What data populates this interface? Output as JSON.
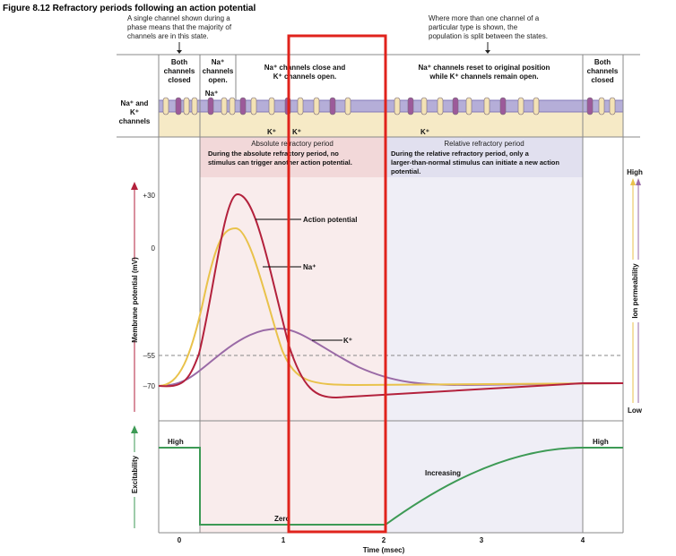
{
  "title": "Figure 8.12 Refractory periods following an action potential",
  "notes": {
    "left": [
      "A single channel shown during a",
      "phase means that the majority of",
      "channels are in this state."
    ],
    "right": [
      "Where more than one channel of a",
      "particular type is shown, the",
      "population is split between the states."
    ]
  },
  "phases": {
    "p1": [
      "Both",
      "channels",
      "closed"
    ],
    "p2": [
      "Na⁺",
      "channels",
      "open."
    ],
    "p3": [
      "Na⁺ channels close and",
      "K⁺ channels open."
    ],
    "p4": [
      "Na⁺ channels reset to original position",
      "while K⁺ channels remain open."
    ],
    "p5": [
      "Both",
      "channels",
      "closed"
    ]
  },
  "channel_label": [
    "Na⁺ and",
    "K⁺",
    "channels"
  ],
  "ion_labels": {
    "na": "Na⁺",
    "k": "K⁺"
  },
  "periods": {
    "absolute_title": "Absolute refractory period",
    "absolute_desc": [
      "During the absolute refractory period, no",
      "stimulus can trigger another action potential."
    ],
    "relative_title": "Relative refractory period",
    "relative_desc": [
      "During the relative refractory period, only a",
      "larger-than-normal stimulus can initiate a new action",
      "potential."
    ]
  },
  "axes": {
    "y_label": "Membrane potential (mV)",
    "y_ticks": [
      "+30",
      "0",
      "–55",
      "–70"
    ],
    "right_label": "Ion permeability",
    "right_high": "High",
    "right_low": "Low",
    "exc_label": "Excitability",
    "exc_high_left": "High",
    "exc_high_right": "High",
    "exc_zero": "Zero",
    "exc_increasing": "Increasing",
    "x_ticks": [
      "0",
      "1",
      "2",
      "3",
      "4"
    ],
    "x_label": "Time (msec)"
  },
  "legend": {
    "ap": "Action potential",
    "na": "Na⁺",
    "k": "K⁺"
  },
  "colors": {
    "ap": "#b3213c",
    "na": "#e9c24b",
    "k": "#9a6aa6",
    "exc": "#3d9a55",
    "highlight": "#e0231c"
  }
}
